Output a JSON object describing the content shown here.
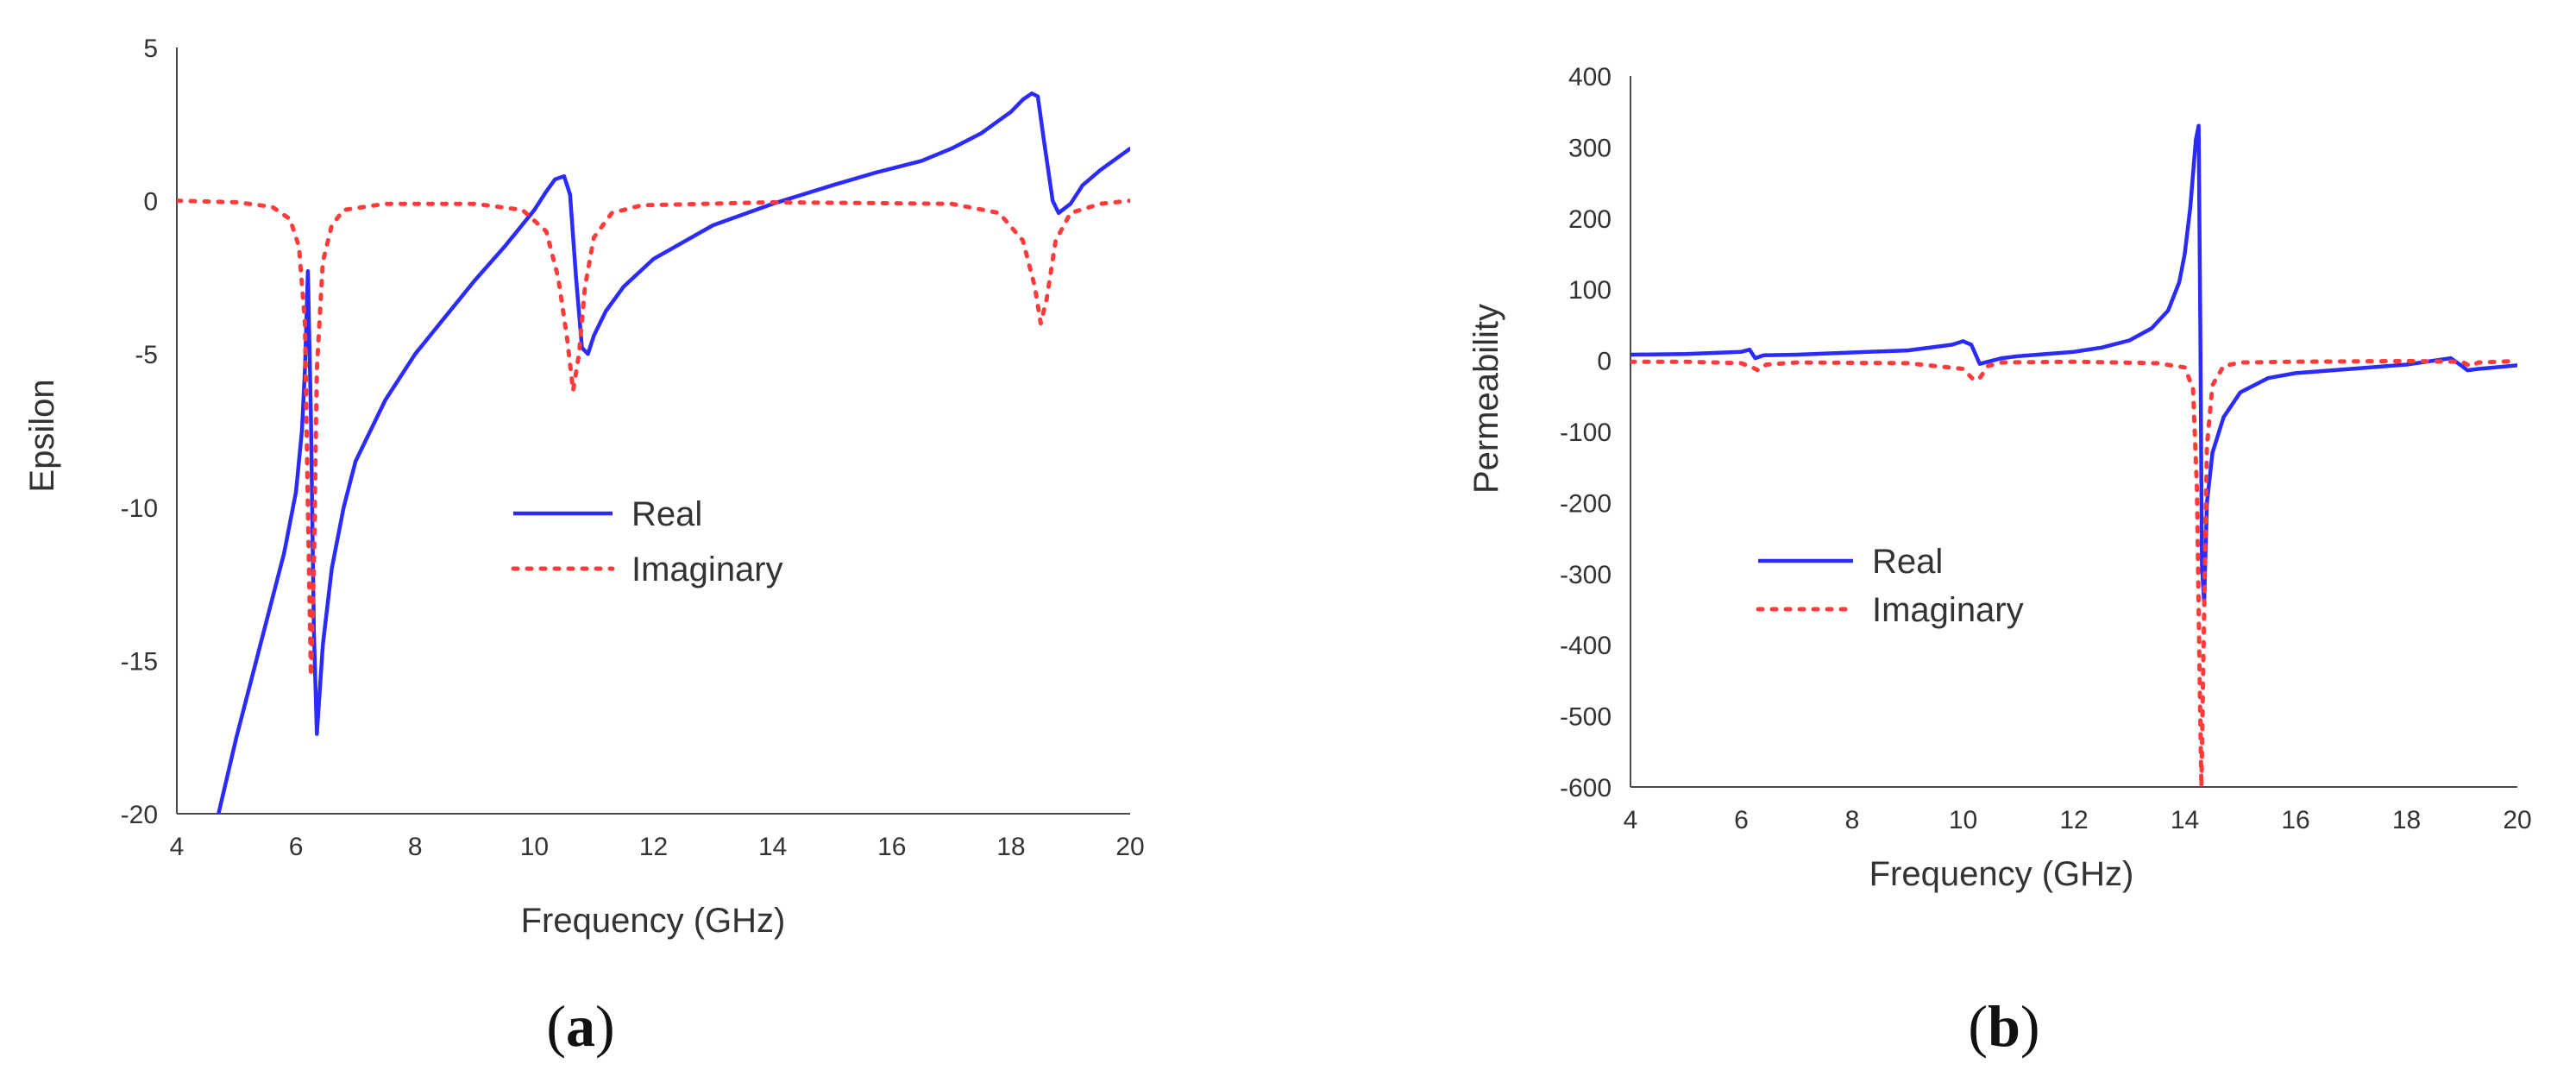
{
  "chart_data": [
    {
      "type": "line",
      "panel_label": {
        "open": "(",
        "letter": "a",
        "close": ")"
      },
      "xlabel": "Frequency (GHz)",
      "ylabel": "Epsilon",
      "xlim": [
        4,
        20
      ],
      "ylim": [
        -20,
        5
      ],
      "xticks": [
        4,
        6,
        8,
        10,
        12,
        14,
        16,
        18,
        20
      ],
      "yticks": [
        5,
        0,
        -5,
        -10,
        -15,
        -20
      ],
      "grid": false,
      "legend_position": "center",
      "series": [
        {
          "name": "Real",
          "style": "solid",
          "color": "#2b2bff",
          "x": [
            4.7,
            5.0,
            5.4,
            5.8,
            6.0,
            6.1,
            6.15,
            6.2,
            6.25,
            6.3,
            6.35,
            6.45,
            6.6,
            6.8,
            7.0,
            7.5,
            8.0,
            8.5,
            9.0,
            9.5,
            10.0,
            10.2,
            10.35,
            10.5,
            10.6,
            10.7,
            10.8,
            10.9,
            11.0,
            11.2,
            11.5,
            12.0,
            13.0,
            14.0,
            14.5,
            15.0,
            15.7,
            16.5,
            17.0,
            17.5,
            18.0,
            18.2,
            18.35,
            18.45,
            18.55,
            18.7,
            18.8,
            19.0,
            19.2,
            19.5,
            20.0
          ],
          "y": [
            -20.0,
            -17.5,
            -14.5,
            -11.5,
            -9.5,
            -7.5,
            -5.5,
            -2.3,
            -7.0,
            -14.0,
            -17.4,
            -14.5,
            -12.0,
            -10.0,
            -8.5,
            -6.5,
            -5.0,
            -3.8,
            -2.6,
            -1.5,
            -0.3,
            0.3,
            0.7,
            0.8,
            0.2,
            -2.5,
            -4.8,
            -5.0,
            -4.4,
            -3.6,
            -2.8,
            -1.9,
            -0.8,
            -0.1,
            0.2,
            0.5,
            0.9,
            1.3,
            1.7,
            2.2,
            2.9,
            3.3,
            3.5,
            3.4,
            2.0,
            0.0,
            -0.4,
            -0.1,
            0.5,
            1.0,
            1.7
          ]
        },
        {
          "name": "Imaginary",
          "style": "dotted",
          "color": "#ff3b3b",
          "x": [
            4.0,
            5.0,
            5.6,
            5.9,
            6.05,
            6.15,
            6.2,
            6.25,
            6.3,
            6.35,
            6.45,
            6.6,
            6.8,
            7.5,
            9.0,
            9.8,
            10.2,
            10.4,
            10.55,
            10.65,
            10.75,
            10.85,
            11.0,
            11.3,
            11.8,
            14.0,
            17.0,
            17.8,
            18.2,
            18.4,
            18.5,
            18.6,
            18.75,
            19.0,
            19.5,
            20.0
          ],
          "y": [
            0.0,
            -0.05,
            -0.2,
            -0.6,
            -1.5,
            -4.0,
            -10.0,
            -15.5,
            -12.0,
            -5.5,
            -2.0,
            -0.8,
            -0.3,
            -0.1,
            -0.1,
            -0.3,
            -1.0,
            -2.5,
            -4.5,
            -6.2,
            -5.0,
            -2.8,
            -1.2,
            -0.4,
            -0.15,
            -0.05,
            -0.1,
            -0.4,
            -1.3,
            -2.8,
            -4.0,
            -3.2,
            -1.3,
            -0.4,
            -0.1,
            0.0
          ]
        }
      ]
    },
    {
      "type": "line",
      "panel_label": {
        "open": "(",
        "letter": "b",
        "close": ")"
      },
      "xlabel": "Frequency (GHz)",
      "ylabel": "Permeability",
      "xlim": [
        4,
        20
      ],
      "ylim": [
        -600,
        400
      ],
      "xticks": [
        4,
        6,
        8,
        10,
        12,
        14,
        16,
        18,
        20
      ],
      "yticks": [
        400,
        300,
        200,
        100,
        0,
        -100,
        -200,
        -300,
        -400,
        -500,
        -600
      ],
      "grid": false,
      "legend_position": "center-left",
      "series": [
        {
          "name": "Real",
          "style": "solid",
          "color": "#2b2bff",
          "x": [
            4.0,
            5.0,
            6.0,
            6.15,
            6.25,
            6.4,
            7.0,
            8.0,
            9.0,
            9.8,
            10.0,
            10.15,
            10.3,
            10.45,
            10.7,
            11.0,
            12.0,
            12.5,
            13.0,
            13.4,
            13.7,
            13.9,
            14.0,
            14.1,
            14.2,
            14.25,
            14.28,
            14.31,
            14.35,
            14.4,
            14.5,
            14.7,
            15.0,
            15.5,
            16.0,
            17.0,
            18.0,
            18.8,
            19.0,
            19.1,
            19.3,
            19.6,
            20.0
          ],
          "y": [
            8,
            9,
            12,
            15,
            3,
            7,
            8,
            11,
            14,
            22,
            27,
            22,
            -5,
            -2,
            3,
            6,
            12,
            18,
            28,
            45,
            70,
            110,
            150,
            215,
            310,
            330,
            50,
            -290,
            -340,
            -200,
            -130,
            -80,
            -45,
            -25,
            -18,
            -12,
            -6,
            3,
            -8,
            -14,
            -12,
            -10,
            -7
          ]
        },
        {
          "name": "Imaginary",
          "style": "dotted",
          "color": "#ff3b3b",
          "x": [
            4.0,
            5.0,
            6.0,
            6.2,
            6.3,
            6.45,
            7.0,
            9.0,
            10.0,
            10.2,
            10.3,
            10.45,
            10.7,
            12.0,
            13.5,
            14.0,
            14.15,
            14.22,
            14.27,
            14.3,
            14.34,
            14.4,
            14.5,
            14.7,
            15.0,
            16.0,
            18.0,
            19.0,
            19.15,
            19.3,
            20.0
          ],
          "y": [
            -2,
            -2,
            -4,
            -10,
            -14,
            -6,
            -3,
            -4,
            -12,
            -28,
            -25,
            -8,
            -3,
            -2,
            -4,
            -10,
            -40,
            -180,
            -450,
            -600,
            -400,
            -120,
            -35,
            -8,
            -3,
            -2,
            -1,
            -2,
            -8,
            -3,
            -1
          ]
        }
      ]
    }
  ]
}
